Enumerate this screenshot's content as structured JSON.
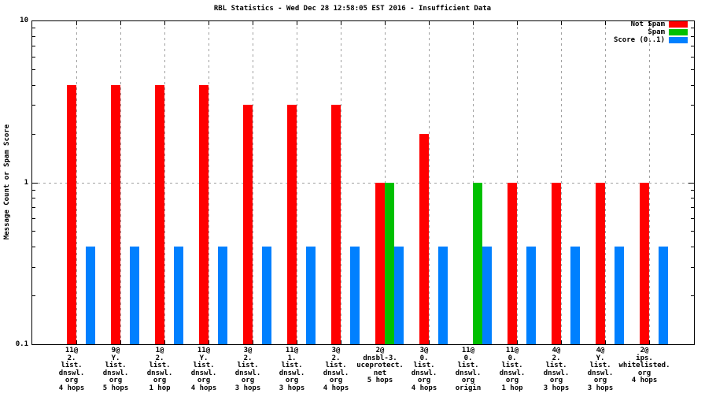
{
  "title": "RBL Statistics - Wed Dec 28 12:58:05 EST 2016 - Insufficient Data",
  "y_axis": {
    "label": "Message Count or Spam Score",
    "major_ticks": [
      {
        "label": "10",
        "value": 10
      },
      {
        "label": "1",
        "value": 1
      },
      {
        "label": "0.1",
        "value": 0.1
      }
    ]
  },
  "legend": {
    "position": "top-right-inside",
    "entries": [
      {
        "label": "Not Spam",
        "color": "#ff0000"
      },
      {
        "label": "Spam",
        "color": "#00c000"
      },
      {
        "label": "Score (0..1)",
        "color": "#0080ff"
      }
    ]
  },
  "colors": {
    "background": "#ffffff",
    "axis": "#000000",
    "grid": "#a0a0a0",
    "not_spam": "#ff0000",
    "spam": "#00c000",
    "score": "#0080ff"
  },
  "chart_data": {
    "type": "bar",
    "y_scale": "log",
    "ylim": [
      0.1,
      10
    ],
    "grid": {
      "horizontal_values": [
        1
      ],
      "vertical": "one-per-category"
    },
    "title": "RBL Statistics - Wed Dec 28 12:58:05 EST 2016 - Insufficient Data",
    "ylabel": "Message Count or Spam Score",
    "xlabel": "",
    "legend_position": "top-right-inside",
    "categories": [
      [
        "11@",
        "2.",
        "list.",
        "dnswl.",
        "org",
        "4 hops"
      ],
      [
        "9@",
        "Y.",
        "list.",
        "dnswl.",
        "org",
        "5 hops"
      ],
      [
        "1@",
        "2.",
        "list.",
        "dnswl.",
        "org",
        "1 hop"
      ],
      [
        "11@",
        "Y.",
        "list.",
        "dnswl.",
        "org",
        "4 hops"
      ],
      [
        "3@",
        "2.",
        "list.",
        "dnswl.",
        "org",
        "3 hops"
      ],
      [
        "11@",
        "1.",
        "list.",
        "dnswl.",
        "org",
        "3 hops"
      ],
      [
        "3@",
        "2.",
        "list.",
        "dnswl.",
        "org",
        "4 hops"
      ],
      [
        "2@",
        "dnsbl-3.",
        "uceprotect.",
        "net",
        "5 hops"
      ],
      [
        "3@",
        "0.",
        "list.",
        "dnswl.",
        "org",
        "4 hops"
      ],
      [
        "11@",
        "0.",
        "list.",
        "dnswl.",
        "org",
        "origin"
      ],
      [
        "11@",
        "0.",
        "list.",
        "dnswl.",
        "org",
        "1 hop"
      ],
      [
        "4@",
        "2.",
        "list.",
        "dnswl.",
        "org",
        "3 hops"
      ],
      [
        "4@",
        "Y.",
        "list.",
        "dnswl.",
        "org",
        "3 hops"
      ],
      [
        "2@",
        "ips.",
        "whitelisted.",
        "org",
        "4 hops"
      ]
    ],
    "series": [
      {
        "name": "Not Spam",
        "color": "#ff0000",
        "values": [
          4,
          4,
          4,
          4,
          3,
          3,
          3,
          1,
          2,
          null,
          1,
          1,
          1,
          1
        ]
      },
      {
        "name": "Spam",
        "color": "#00c000",
        "values": [
          null,
          null,
          null,
          null,
          null,
          null,
          null,
          1,
          null,
          1,
          null,
          null,
          null,
          null
        ]
      },
      {
        "name": "Score (0..1)",
        "color": "#0080ff",
        "values": [
          0.4,
          0.4,
          0.4,
          0.4,
          0.4,
          0.4,
          0.4,
          0.4,
          0.4,
          0.4,
          0.4,
          0.4,
          0.4,
          0.4
        ]
      }
    ]
  }
}
